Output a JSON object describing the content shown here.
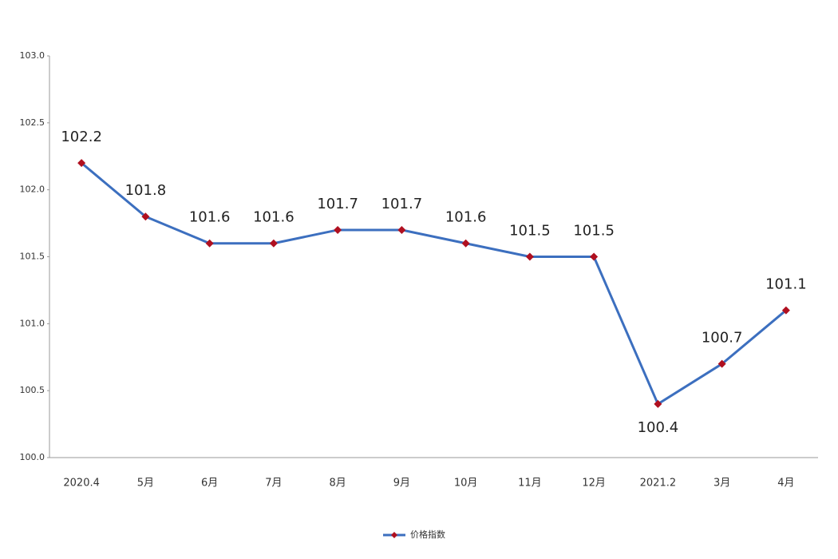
{
  "chart_data": {
    "type": "line",
    "categories": [
      "2020.4",
      "5月",
      "6月",
      "7月",
      "8月",
      "9月",
      "10月",
      "11月",
      "12月",
      "2021.2",
      "3月",
      "4月"
    ],
    "series": [
      {
        "name": "价格指数",
        "color": "#3c6fbf",
        "marker_color": "#b01020",
        "values": [
          102.2,
          101.8,
          101.6,
          101.6,
          101.7,
          101.7,
          101.6,
          101.5,
          101.5,
          100.4,
          100.7,
          101.1
        ]
      }
    ],
    "ylim": [
      100,
      103
    ],
    "yticks": [
      {
        "value": 100,
        "label": "100.0"
      },
      100.5,
      {
        "value": 101,
        "label": "101.0"
      },
      101.5,
      {
        "value": 102,
        "label": "102.0"
      },
      102.5,
      {
        "value": 103,
        "label": "103.0"
      }
    ],
    "grid": false,
    "legend": "bottom"
  }
}
